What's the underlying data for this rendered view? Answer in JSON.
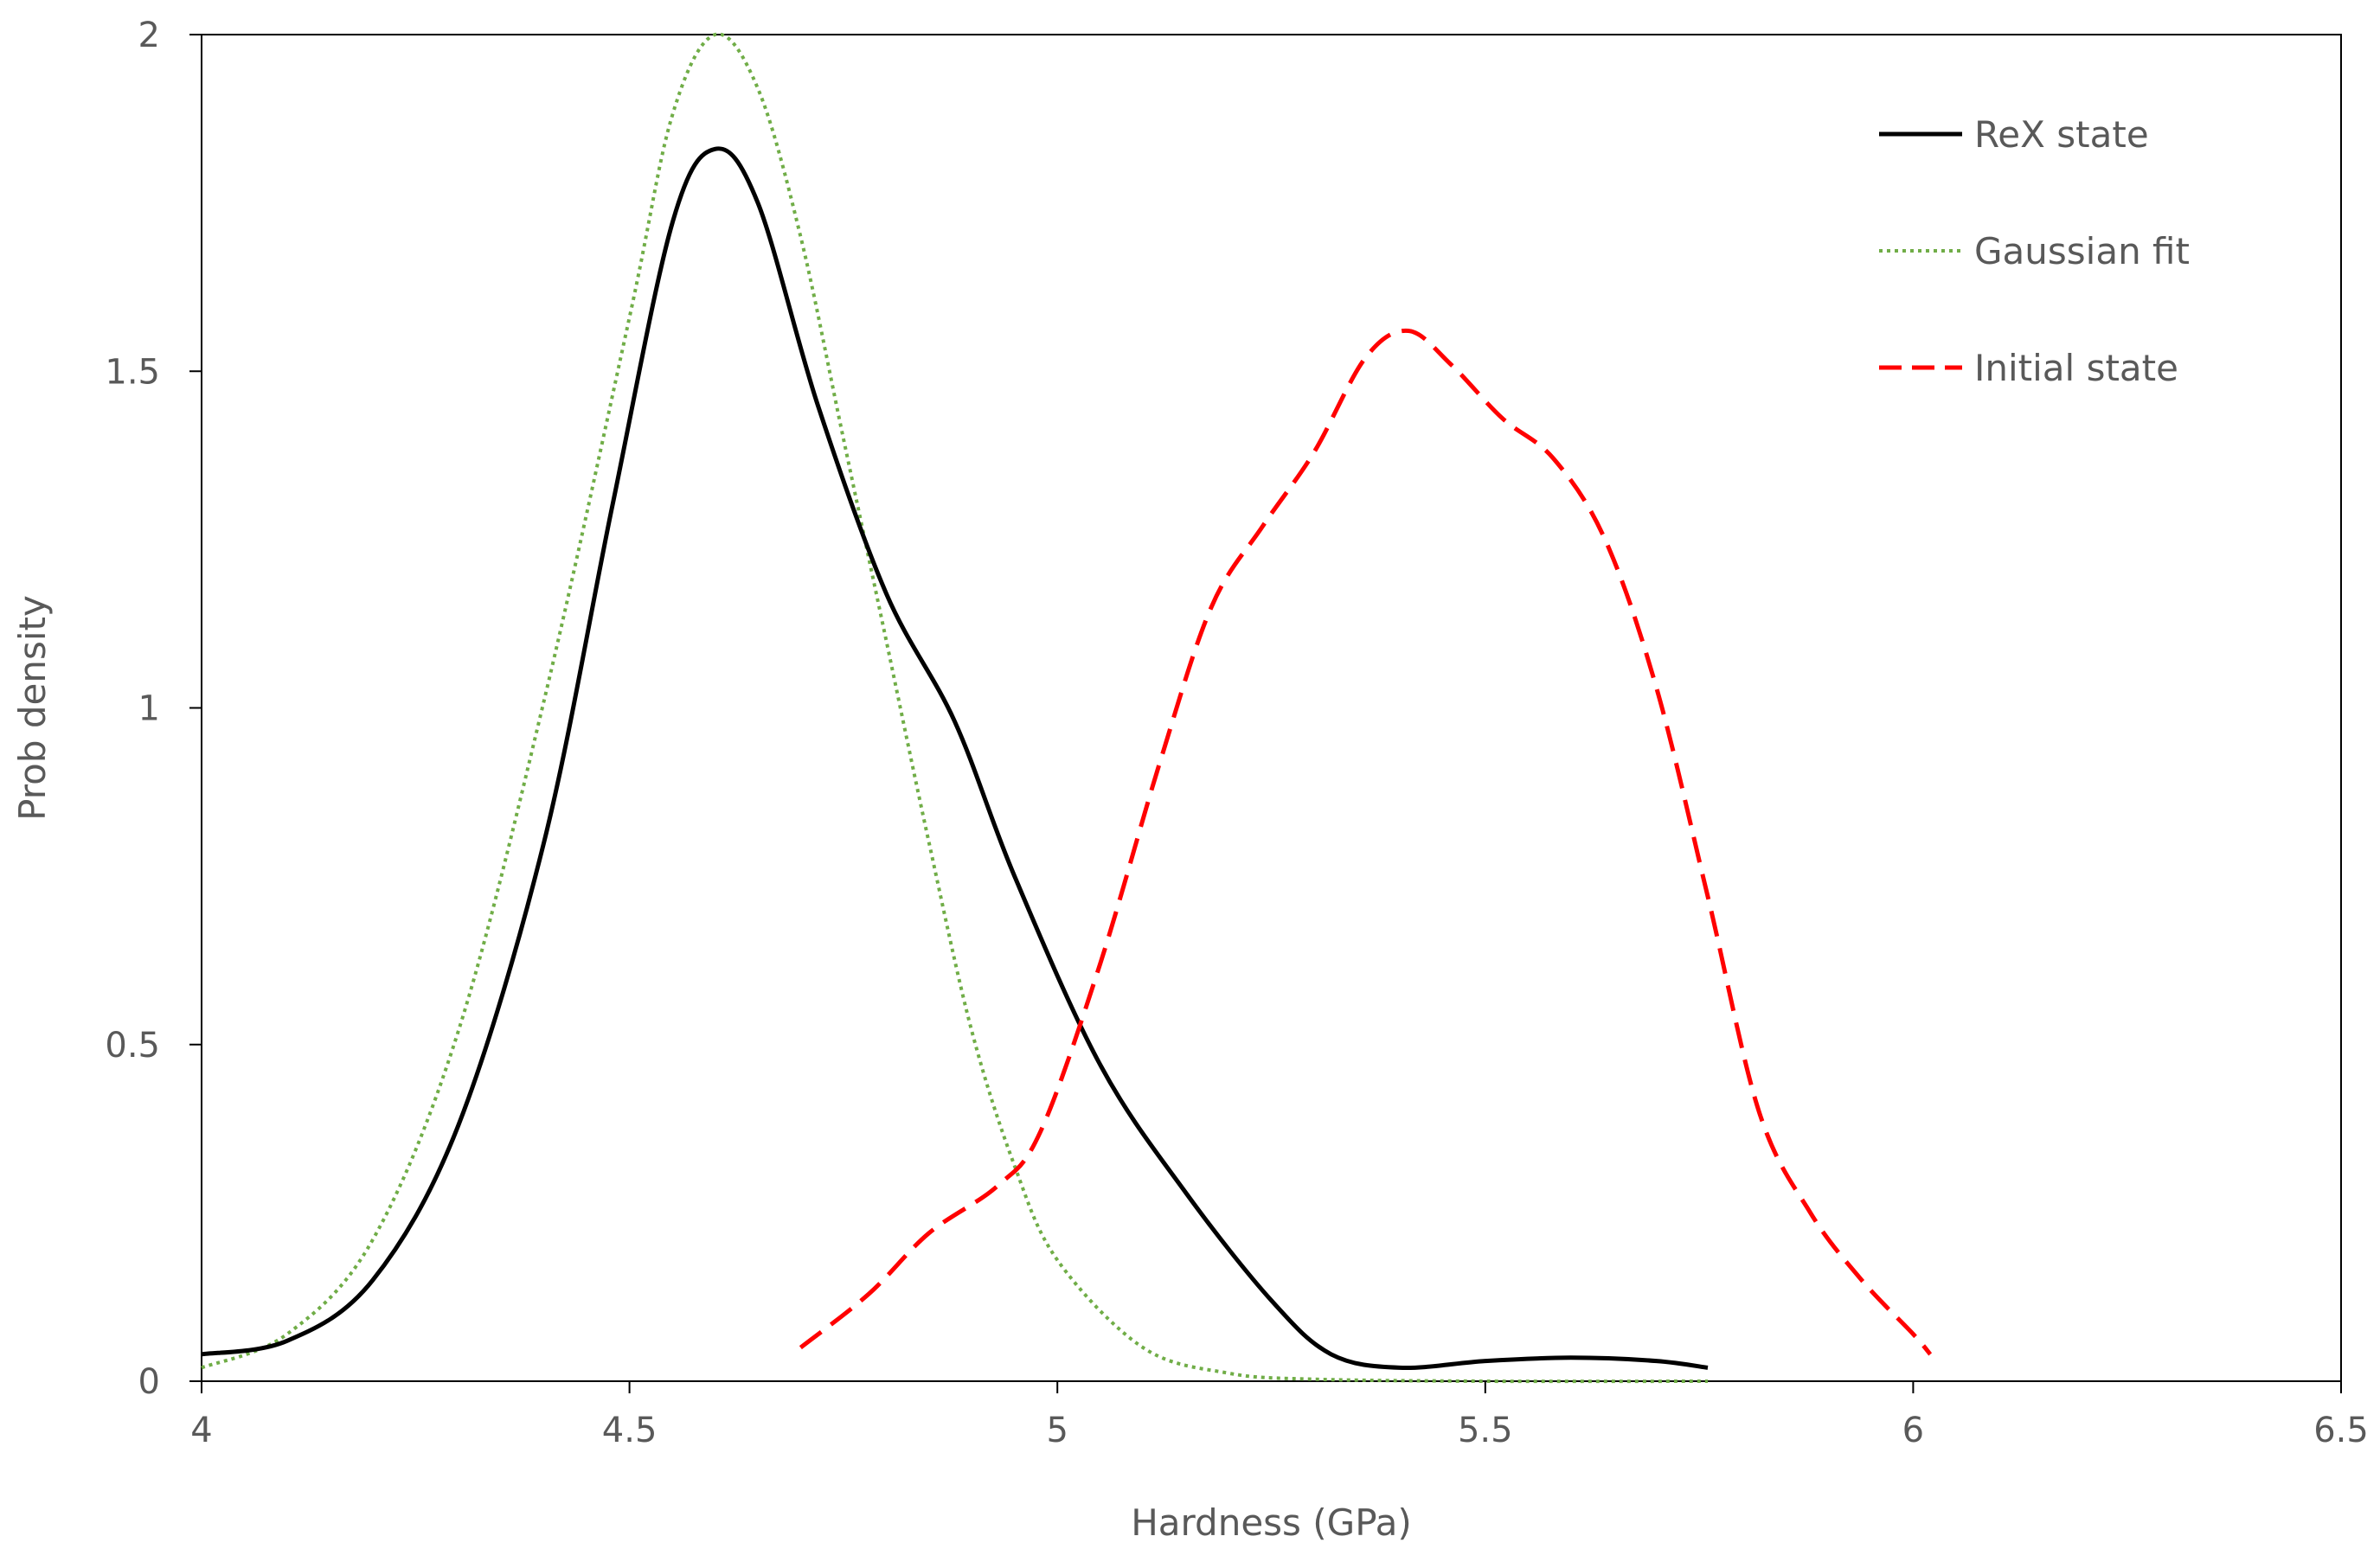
{
  "chart_data": {
    "type": "line",
    "title": "",
    "xlabel": "Hardness (GPa)",
    "ylabel": "Prob density",
    "xlim": [
      4,
      6.5
    ],
    "ylim": [
      0,
      2
    ],
    "xticks": [
      "4",
      "4.5",
      "5",
      "5.5",
      "6",
      "6.5"
    ],
    "yticks": [
      "0",
      "0.5",
      "1",
      "1.5",
      "2"
    ],
    "grid": false,
    "legend_position": "top-right",
    "series": [
      {
        "name": "ReX state",
        "color": "#000000",
        "style": "solid",
        "points": [
          [
            4.0,
            0.04
          ],
          [
            4.1,
            0.06
          ],
          [
            4.2,
            0.15
          ],
          [
            4.3,
            0.38
          ],
          [
            4.4,
            0.8
          ],
          [
            4.48,
            1.3
          ],
          [
            4.55,
            1.72
          ],
          [
            4.6,
            1.83
          ],
          [
            4.65,
            1.75
          ],
          [
            4.72,
            1.45
          ],
          [
            4.8,
            1.17
          ],
          [
            4.88,
            0.98
          ],
          [
            4.95,
            0.75
          ],
          [
            5.05,
            0.47
          ],
          [
            5.15,
            0.28
          ],
          [
            5.25,
            0.12
          ],
          [
            5.32,
            0.04
          ],
          [
            5.4,
            0.02
          ],
          [
            5.5,
            0.03
          ],
          [
            5.6,
            0.035
          ],
          [
            5.7,
            0.03
          ],
          [
            5.76,
            0.02
          ]
        ]
      },
      {
        "name": "Gaussian fit",
        "color": "#70ad47",
        "style": "dotted",
        "points": [
          [
            4.0,
            0.02
          ],
          [
            4.1,
            0.07
          ],
          [
            4.2,
            0.21
          ],
          [
            4.3,
            0.52
          ],
          [
            4.4,
            1.01
          ],
          [
            4.5,
            1.58
          ],
          [
            4.55,
            1.88
          ],
          [
            4.6,
            2.0
          ],
          [
            4.65,
            1.92
          ],
          [
            4.7,
            1.7
          ],
          [
            4.75,
            1.4
          ],
          [
            4.8,
            1.1
          ],
          [
            4.85,
            0.8
          ],
          [
            4.9,
            0.52
          ],
          [
            4.95,
            0.32
          ],
          [
            5.0,
            0.18
          ],
          [
            5.1,
            0.05
          ],
          [
            5.2,
            0.012
          ],
          [
            5.3,
            0.003
          ],
          [
            5.5,
            0.0
          ],
          [
            5.76,
            0.0
          ]
        ]
      },
      {
        "name": "Initial state",
        "color": "#ff0000",
        "style": "dashed",
        "points": [
          [
            4.7,
            0.05
          ],
          [
            4.78,
            0.13
          ],
          [
            4.85,
            0.22
          ],
          [
            4.93,
            0.29
          ],
          [
            4.98,
            0.37
          ],
          [
            5.05,
            0.62
          ],
          [
            5.12,
            0.92
          ],
          [
            5.18,
            1.15
          ],
          [
            5.24,
            1.27
          ],
          [
            5.3,
            1.38
          ],
          [
            5.36,
            1.52
          ],
          [
            5.41,
            1.56
          ],
          [
            5.46,
            1.51
          ],
          [
            5.52,
            1.43
          ],
          [
            5.58,
            1.37
          ],
          [
            5.64,
            1.25
          ],
          [
            5.7,
            1.03
          ],
          [
            5.76,
            0.72
          ],
          [
            5.82,
            0.4
          ],
          [
            5.88,
            0.25
          ],
          [
            5.94,
            0.15
          ],
          [
            6.0,
            0.07
          ],
          [
            6.02,
            0.04
          ]
        ]
      }
    ]
  }
}
